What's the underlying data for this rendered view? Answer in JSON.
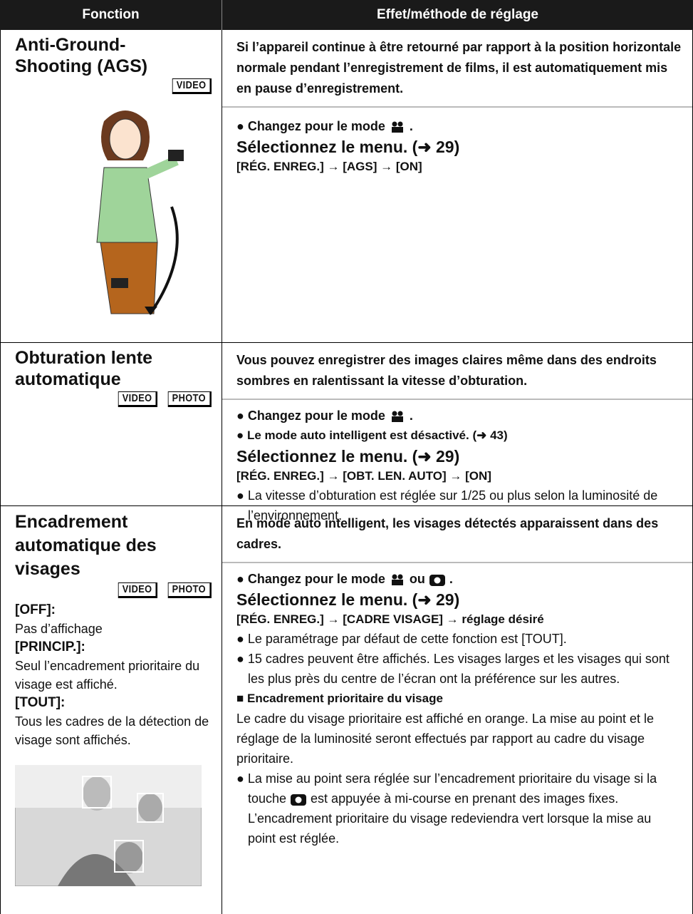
{
  "header": {
    "col1": "Fonction",
    "col2": "Effet/méthode de réglage"
  },
  "rows": [
    {
      "title": "Anti-Ground-Shooting (AGS)",
      "badges": [
        "VIDEO"
      ],
      "intro": "Si l’appareil continue à être retourné par rapport à la position horizontale normale pendant l’enregistrement de films, il est automatiquement mis en pause d’enregistrement.",
      "mode_before": "● Changez pour le mode",
      "mode_after": ".",
      "menu_heading": "Sélectionnez le menu. (➜ 29)",
      "menu_path": "[RÉG. ENREG.] → [AGS] → [ON]"
    },
    {
      "title": "Obturation lente automatique",
      "badges": [
        "VIDEO",
        "PHOTO"
      ],
      "intro": "Vous pouvez enregistrer des images claires même dans des endroits sombres en ralentissant la vitesse d’obturation.",
      "mode_before": "● Changez pour le mode",
      "mode_after": ".",
      "extra": "● Le mode auto intelligent est désactivé. (➜ 43)",
      "menu_heading": "Sélectionnez le menu. (➜ 29)",
      "menu_path": "[RÉG. ENREG.] → [OBT. LEN. AUTO] → [ON]",
      "notes": [
        "● La vitesse d’obturation est réglée sur 1/25 ou plus selon la luminosité de l’environnement."
      ]
    },
    {
      "title": "Encadrement automatique des visages",
      "badges": [
        "VIDEO",
        "PHOTO"
      ],
      "options": [
        {
          "key": "[OFF]:",
          "desc": "Pas d’affichage"
        },
        {
          "key": "[PRINCIP.]:",
          "desc": "Seul l’encadrement prioritaire du visage est affiché."
        },
        {
          "key": "[TOUT]:",
          "desc": "Tous les cadres de la détection de visage sont affichés."
        }
      ],
      "intro": "En mode auto intelligent, les visages détectés apparaissent dans des cadres.",
      "mode_before": "● Changez pour le mode",
      "mode_or": "ou",
      "mode_after": ".",
      "menu_heading": "Sélectionnez le menu. (➜ 29)",
      "menu_path": "[RÉG. ENREG.] → [CADRE VISAGE] → réglage désiré",
      "notes": [
        "● Le paramétrage par défaut de cette fonction est [TOUT].",
        "● 15 cadres peuvent être affichés. Les visages larges et les visages qui sont les plus près du centre de l’écran ont la préférence sur les autres."
      ],
      "subheading": "■ Encadrement prioritaire du visage",
      "paragraph": "Le cadre du visage prioritaire est affiché en orange. La mise au point et le réglage de la luminosité seront effectués par rapport au cadre du visage prioritaire.",
      "last_before": "● La mise au point sera réglée sur l’encadrement prioritaire du visage si la touche",
      "last_after": "est appuyée à mi-course en prenant des images fixes. L’encadrement prioritaire du visage redeviendra vert lorsque la mise au point est réglée."
    }
  ]
}
